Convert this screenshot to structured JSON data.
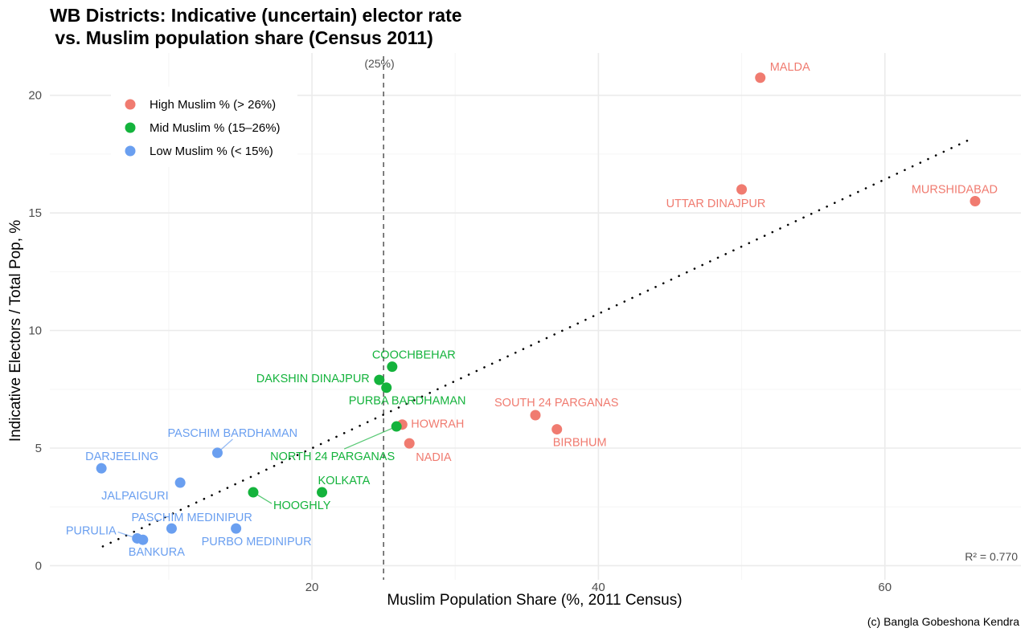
{
  "chart_data": {
    "type": "scatter",
    "title": "WB Districts: Indicative (uncertain) elector rate",
    "subtitle": " vs. Muslim population share (Census 2011)",
    "xlabel": "Muslim Population Share (%, 2011 Census)",
    "ylabel": "Indicative Electors / Total Pop, %",
    "xlim": [
      1.7,
      69.5
    ],
    "ylim": [
      -0.6,
      21.8
    ],
    "xticks": [
      20,
      40,
      60
    ],
    "yticks": [
      0,
      5,
      10,
      15,
      20
    ],
    "xtick_labels": [
      "20",
      "40",
      "60"
    ],
    "ytick_labels": [
      "0",
      "5",
      "10",
      "15",
      "20"
    ],
    "grid": true,
    "legend_position": "top-left",
    "categories": [
      {
        "key": "high",
        "label": "High Muslim % (> 26%)",
        "color": "#f07b70"
      },
      {
        "key": "mid",
        "label": "Mid Muslim % (15–26%)",
        "color": "#14b33c"
      },
      {
        "key": "low",
        "label": "Low Muslim % (< 15%)",
        "color": "#6a9ff0"
      }
    ],
    "points": [
      {
        "name": "MALDA",
        "x": 51.3,
        "y": 20.75,
        "group": "high"
      },
      {
        "name": "UTTAR DINAJPUR",
        "x": 50.0,
        "y": 16.0,
        "group": "high"
      },
      {
        "name": "MURSHIDABAD",
        "x": 66.3,
        "y": 15.5,
        "group": "high"
      },
      {
        "name": "SOUTH 24 PARGANAS",
        "x": 35.6,
        "y": 6.4,
        "group": "high"
      },
      {
        "name": "BIRBHUM",
        "x": 37.1,
        "y": 5.8,
        "group": "high"
      },
      {
        "name": "HOWRAH",
        "x": 26.3,
        "y": 6.0,
        "group": "high"
      },
      {
        "name": "NADIA",
        "x": 26.8,
        "y": 5.2,
        "group": "high"
      },
      {
        "name": "COOCHBEHAR",
        "x": 25.6,
        "y": 8.46,
        "group": "mid"
      },
      {
        "name": "DAKSHIN DINAJPUR",
        "x": 24.7,
        "y": 7.9,
        "group": "mid"
      },
      {
        "name": "PURBA BARDHAMAN",
        "x": 25.2,
        "y": 7.57,
        "group": "mid"
      },
      {
        "name": "NORTH 24 PARGANAS",
        "x": 25.9,
        "y": 5.92,
        "group": "mid"
      },
      {
        "name": "HOOGHLY",
        "x": 15.9,
        "y": 3.12,
        "group": "mid"
      },
      {
        "name": "KOLKATA",
        "x": 20.7,
        "y": 3.12,
        "group": "mid"
      },
      {
        "name": "PASCHIM BARDHAMAN",
        "x": 13.4,
        "y": 4.8,
        "group": "low"
      },
      {
        "name": "DARJEELING",
        "x": 5.3,
        "y": 4.14,
        "group": "low"
      },
      {
        "name": "JALPAIGURI",
        "x": 10.8,
        "y": 3.53,
        "group": "low"
      },
      {
        "name": "PASCHIM MEDINIPUR",
        "x": 10.2,
        "y": 1.58,
        "group": "low"
      },
      {
        "name": "PURBO MEDINIPUR",
        "x": 14.7,
        "y": 1.58,
        "group": "low"
      },
      {
        "name": "PURULIA",
        "x": 7.8,
        "y": 1.16,
        "group": "low"
      },
      {
        "name": "BANKURA",
        "x": 8.2,
        "y": 1.1,
        "group": "low"
      }
    ],
    "trendline": {
      "x": [
        5.4,
        66.2
      ],
      "y": [
        0.82,
        18.2
      ],
      "style": "dotted"
    },
    "reference_line": {
      "x": 25,
      "label": "(25%)",
      "style": "dashed"
    },
    "annotations": [
      {
        "text": "R² = 0.770",
        "position": "bottom-right"
      }
    ],
    "caption": "(c) Bangla Gobeshona Kendra"
  }
}
